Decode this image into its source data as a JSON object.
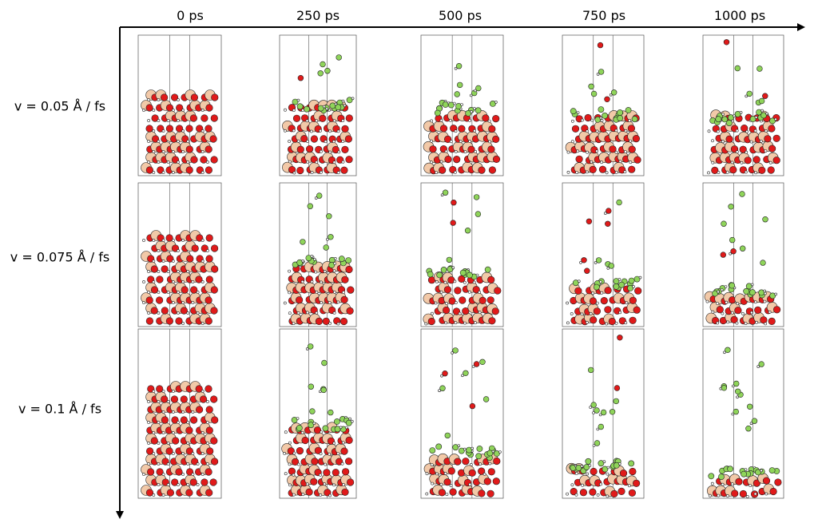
{
  "columns": [
    "0 ps",
    "250 ps",
    "500 ps",
    "750 ps",
    "1000 ps"
  ],
  "rows": [
    "v = 0.05 Å / fs",
    "v = 0.075 Å / fs",
    "v = 0.1 Å / fs"
  ],
  "colors": {
    "large_atom": "#f2c9a8",
    "oxygen": "#e01a1a",
    "green_atom": "#8fd45a",
    "small_atom": "#ffffff",
    "outline": "#222222",
    "cell_line": "#555555"
  },
  "panels": [
    {
      "row": 0,
      "col": 0,
      "damage": 0.0
    },
    {
      "row": 0,
      "col": 1,
      "damage": 0.25
    },
    {
      "row": 0,
      "col": 2,
      "damage": 0.3
    },
    {
      "row": 0,
      "col": 3,
      "damage": 0.4
    },
    {
      "row": 0,
      "col": 4,
      "damage": 0.45
    },
    {
      "row": 1,
      "col": 0,
      "damage": 0.0
    },
    {
      "row": 1,
      "col": 1,
      "damage": 0.35
    },
    {
      "row": 1,
      "col": 2,
      "damage": 0.55
    },
    {
      "row": 1,
      "col": 3,
      "damage": 0.7
    },
    {
      "row": 1,
      "col": 4,
      "damage": 0.8
    },
    {
      "row": 2,
      "col": 0,
      "damage": 0.0
    },
    {
      "row": 2,
      "col": 1,
      "damage": 0.45
    },
    {
      "row": 2,
      "col": 2,
      "damage": 0.75
    },
    {
      "row": 2,
      "col": 3,
      "damage": 0.9
    },
    {
      "row": 2,
      "col": 4,
      "damage": 0.97
    }
  ]
}
